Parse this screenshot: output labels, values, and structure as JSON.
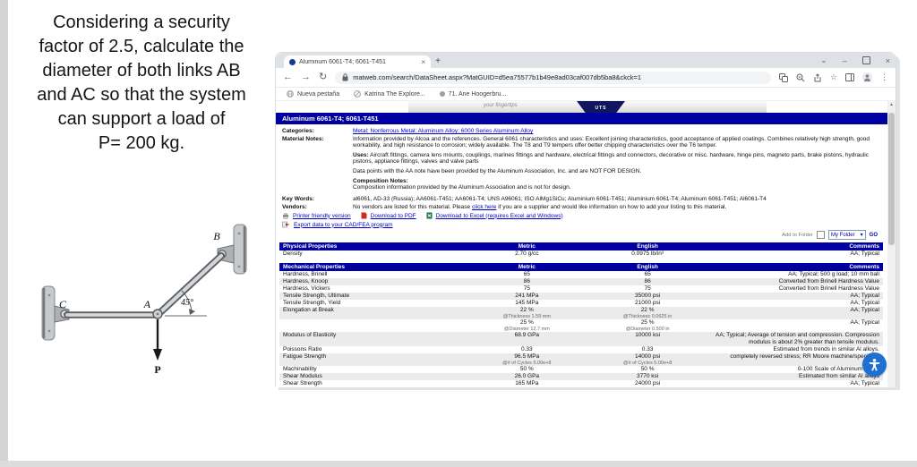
{
  "problem": {
    "text_lines": [
      "Considering a security",
      "factor of 2.5, calculate the",
      "diameter of both links AB",
      "and AC so that the system",
      "can support a load of",
      "P= 200 kg."
    ],
    "diagram": {
      "label_b": "B",
      "label_a": "A",
      "label_c": "C",
      "label_p": "P",
      "angle_label": "45°"
    }
  },
  "browser": {
    "tab_title": "Aluminum 6061-T4; 6061-T451",
    "tab_close_glyph": "×",
    "new_tab_glyph": "+",
    "chevron_glyph": "⌄",
    "minimize_glyph": "–",
    "close_glyph": "×",
    "back_glyph": "←",
    "forward_glyph": "→",
    "reload_glyph": "↻",
    "url": "matweb.com/search/DataSheet.aspx?MatGUID=d5ea75577b1b49e8ad03caf007db5ba8&ckck=1",
    "star_glyph": "☆",
    "kebab_glyph": "⋮",
    "bookmarks": [
      {
        "label": "Nueva pestaña"
      },
      {
        "label": "Katrina The Explore..."
      },
      {
        "label": "71. Ane Hoogerbru..."
      }
    ]
  },
  "page": {
    "banner_tagline": "your fingertips",
    "banner_badge": "UTS",
    "title": "Aluminum 6061-T4; 6061-T451",
    "categories_label": "Categories:",
    "categories": [
      "Metal",
      "Nonferrous Metal",
      "Aluminum Alloy",
      "6000 Series Aluminum Alloy"
    ],
    "material_notes_label": "Material Notes:",
    "notes_p1": "Information provided by Alcoa and the references. General 6061 characteristics and uses: Excellent joining characteristics, good acceptance of applied coatings. Combines relatively high strength, good workability, and high resistance to corrosion; widely available. The T8 and T9 tempers offer better chipping characteristics over the T6 temper.",
    "uses_label": "Uses:",
    "uses_text": "Aircraft fittings, camera lens mounts, couplings, marines fittings and hardware, electrical fittings and connectors, decorative or misc. hardware, hinge pins, magneto parts, brake pistons, hydraulic pistons, appliance fittings, valves and valve parts",
    "notes_data": "Data points with the AA note have been provided by the Aluminum Association, Inc. and are NOT FOR DESIGN.",
    "composition_label": "Composition Notes:",
    "composition_text": "Composition information provided by the Aluminum Association and is not for design.",
    "keywords_label": "Key Words:",
    "keywords": "al6061, AD-33 (Russia); AA6061-T451; AA6061-T4; UNS A96061; ISO AlMg1SiCu; Aluminium 6061-T451; Aluminium 6061-T4; Aluminum 6061-T451; Al6061-T4",
    "vendors_label": "Vendors:",
    "vendors_pre": "No vendors are listed for this material. Please ",
    "vendors_link": "click here",
    "vendors_post": " if you are a supplier and would like information on how to add your listing to this material.",
    "action_print": "Printer friendly version",
    "action_pdf": "Download to PDF",
    "action_excel": "Download to Excel (requires Excel and Windows)",
    "action_export": "Export data to your CAD/FEA program",
    "add_to_folder_label": "Add to Folder",
    "folder_select_value": "My Folder",
    "folder_select_arrow": "▾",
    "go_label": "GO",
    "scroll_up_glyph": "▲"
  },
  "tables": {
    "physical": {
      "title": "Physical Properties",
      "col_metric": "Metric",
      "col_english": "English",
      "col_comments": "Comments",
      "rows": [
        {
          "name": "Density",
          "metric": "2.70 g/cc",
          "english": "0.0975 lb/in³",
          "comments": "AA; Typical"
        }
      ]
    },
    "mechanical": {
      "title": "Mechanical Properties",
      "col_metric": "Metric",
      "col_english": "English",
      "col_comments": "Comments",
      "rows": [
        {
          "name": "Hardness, Brinell",
          "metric": "65",
          "english": "65",
          "comments": "AA; Typical; 500 g load; 10 mm ball"
        },
        {
          "name": "Hardness, Knoop",
          "metric": "86",
          "english": "86",
          "comments": "Converted from Brinell Hardness Value"
        },
        {
          "name": "Hardness, Vickers",
          "metric": "75",
          "english": "75",
          "comments": "Converted from Brinell Hardness Value"
        },
        {
          "name": "Tensile Strength, Ultimate",
          "metric": "241 MPa",
          "english": "35000 psi",
          "comments": "AA; Typical"
        },
        {
          "name": "Tensile Strength, Yield",
          "metric": "145 MPa",
          "english": "21000 psi",
          "comments": "AA; Typical"
        },
        {
          "name": "Elongation at Break",
          "metric": "22 %",
          "metric_note": "@Thickness 1.59 mm",
          "english": "22 %",
          "english_note": "@Thickness 0.0625 in",
          "comments": "AA; Typical"
        },
        {
          "name": "",
          "metric": "25 %",
          "metric_note": "@Diameter 12.7 mm",
          "english": "25 %",
          "english_note": "@Diameter 0.500 in",
          "comments": "AA; Typical"
        },
        {
          "name": "Modulus of Elasticity",
          "metric": "68.9 GPa",
          "english": "10000 ksi",
          "comments": "AA; Typical; Average of tension and compression. Compression modulus is about 2% greater than tensile modulus."
        },
        {
          "name": "Poissons Ratio",
          "metric": "0.33",
          "english": "0.33",
          "comments": "Estimated from trends in similar Al alloys."
        },
        {
          "name": "Fatigue Strength",
          "metric": "96.5 MPa",
          "metric_note": "@# of Cycles 5.00e+8",
          "english": "14000 psi",
          "english_note": "@# of Cycles 5.00e+8",
          "comments": "completely reversed stress; RR Moore machine/specimen"
        },
        {
          "name": "Machinability",
          "metric": "50 %",
          "english": "50 %",
          "comments": "0-100 Scale of Aluminum Alloys"
        },
        {
          "name": "Shear Modulus",
          "metric": "26.0 GPa",
          "english": "3770 ksi",
          "comments": "Estimated from similar Al alloys"
        },
        {
          "name": "Shear Strength",
          "metric": "165 MPa",
          "english": "24000 psi",
          "comments": "AA; Typical"
        }
      ]
    }
  }
}
